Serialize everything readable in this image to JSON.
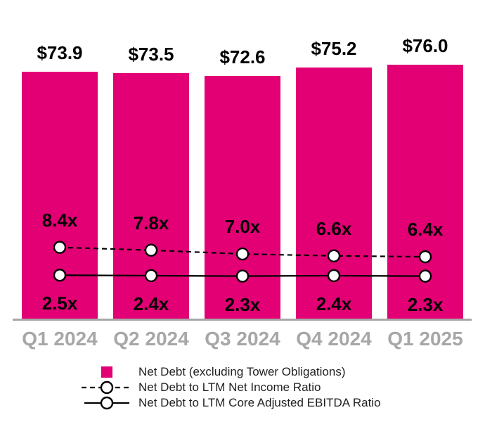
{
  "chart_data": {
    "type": "bar",
    "title": "",
    "xlabel": "",
    "ylabel": "",
    "grid": false,
    "legend_position": "bottom",
    "categories": [
      "Q1 2024",
      "Q2 2024",
      "Q3 2024",
      "Q4 2024",
      "Q1 2025"
    ],
    "series": [
      {
        "name": "Net Debt (excluding Tower Obligations)",
        "type": "bar",
        "values": [
          73.9,
          73.5,
          72.6,
          75.2,
          76.0
        ],
        "labels": [
          "$73.9",
          "$73.5",
          "$72.6",
          "$75.2",
          "$76.0"
        ],
        "color": "#E20074",
        "label_position": "above-bar"
      },
      {
        "name": "Net Debt to LTM Net Income Ratio",
        "type": "line",
        "line_style": "dashed",
        "marker": "open-circle",
        "values": [
          8.4,
          7.8,
          7.0,
          6.6,
          6.4
        ],
        "labels": [
          "8.4x",
          "7.8x",
          "7.0x",
          "6.6x",
          "6.4x"
        ],
        "color": "#000000",
        "label_position": "above"
      },
      {
        "name": "Net Debt to LTM Core Adjusted EBITDA Ratio",
        "type": "line",
        "line_style": "solid",
        "marker": "open-circle",
        "values": [
          2.5,
          2.4,
          2.3,
          2.4,
          2.3
        ],
        "labels": [
          "2.5x",
          "2.4x",
          "2.3x",
          "2.4x",
          "2.3x"
        ],
        "color": "#000000",
        "label_position": "below"
      }
    ],
    "axis_line_color": "#A7A7A7",
    "category_label_color": "#A7A7A7",
    "marker_fill": "#FFFFFF",
    "marker_stroke": "#000000"
  },
  "legend": {
    "items": [
      {
        "label": "Net Debt (excluding Tower Obligations)",
        "marker": "square",
        "color": "#E20074"
      },
      {
        "label": "Net Debt to LTM Net Income Ratio",
        "marker": "dashed-line-open-circle",
        "color": "#000000"
      },
      {
        "label": "Net Debt to LTM Core Adjusted EBITDA Ratio",
        "marker": "solid-line-open-circle",
        "color": "#000000"
      }
    ]
  }
}
